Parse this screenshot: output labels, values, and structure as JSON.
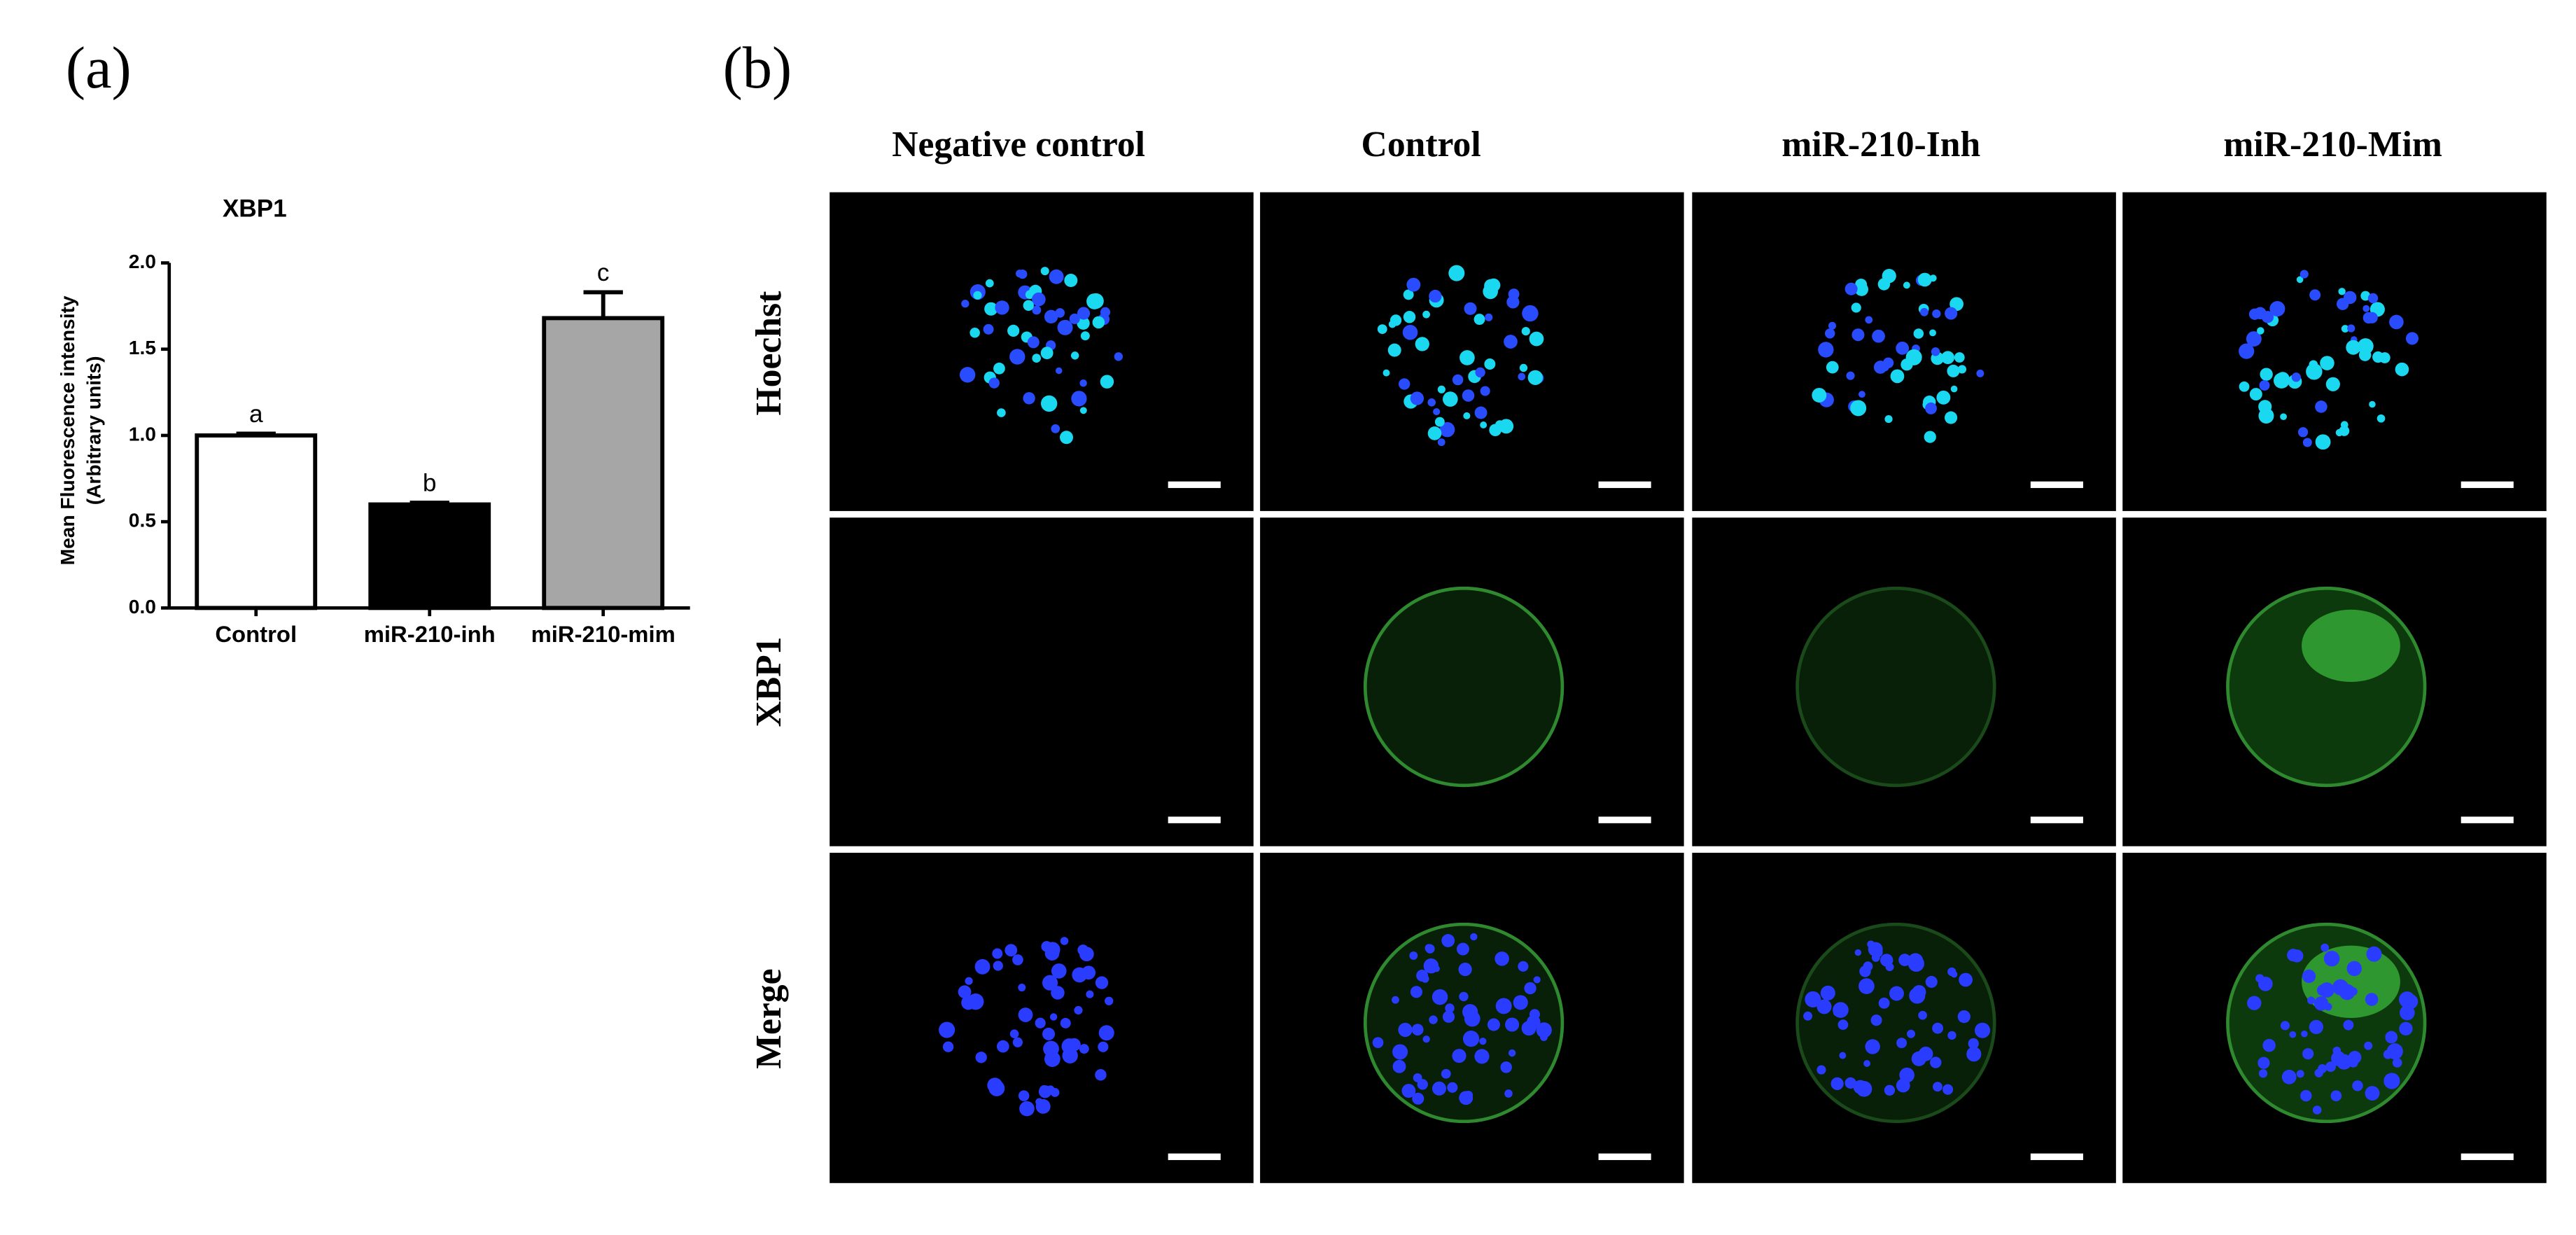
{
  "panel_labels": [
    "(a)",
    "(b)"
  ],
  "chart_data": {
    "type": "bar",
    "title": "XBP1",
    "y_label": [
      "Mean Fluorescence intensity",
      "(Arbitrary units)"
    ],
    "categories": [
      "Control",
      "miR-210-inh",
      "miR-210-mim"
    ],
    "values": [
      1.0,
      0.6,
      1.68
    ],
    "errors": [
      0.01,
      0.01,
      0.15
    ],
    "annotations": [
      "a",
      "b",
      "c"
    ],
    "colors": [
      "#ffffff",
      "#000000",
      "#a6a6a6"
    ],
    "ylim": [
      0,
      2
    ],
    "yticks": [
      {
        "value": 0,
        "label": "0.0"
      },
      {
        "value": 0.5,
        "label": "0.5"
      },
      {
        "value": 1,
        "label": "1.0"
      },
      {
        "value": 1.5,
        "label": "1.5"
      },
      {
        "value": 2,
        "label": "2.0"
      }
    ]
  },
  "micrographs": {
    "columns": [
      "Negative control",
      "Control",
      "miR-210-Inh",
      "miR-210-Mim"
    ],
    "rows": [
      "Hoechst",
      "XBP1",
      "Merge"
    ]
  }
}
